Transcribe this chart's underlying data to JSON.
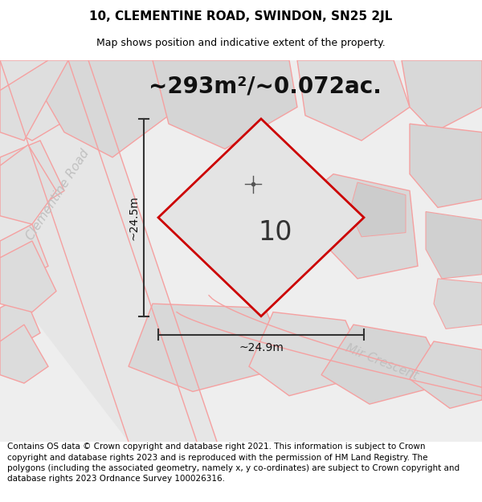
{
  "title_line1": "10, CLEMENTINE ROAD, SWINDON, SN25 2JL",
  "title_line2": "Map shows position and indicative extent of the property.",
  "area_text": "~293m²/~0.072ac.",
  "property_number": "10",
  "dim_vertical": "~24.5m",
  "dim_horizontal": "~24.9m",
  "road_label_left": "Clementine Road",
  "road_label_right": "Mir Crescent",
  "footer_text": "Contains OS data © Crown copyright and database right 2021. This information is subject to Crown copyright and database rights 2023 and is reproduced with the permission of HM Land Registry. The polygons (including the associated geometry, namely x, y co-ordinates) are subject to Crown copyright and database rights 2023 Ordnance Survey 100026316.",
  "map_bg": "#eeeeee",
  "plot_stroke": "#cc0000",
  "cadastral_color": "#f5a0a0",
  "title_fontsize": 11,
  "subtitle_fontsize": 9,
  "area_fontsize": 20,
  "property_num_fontsize": 24,
  "dim_fontsize": 10,
  "road_label_fontsize": 11,
  "footer_fontsize": 7.5
}
